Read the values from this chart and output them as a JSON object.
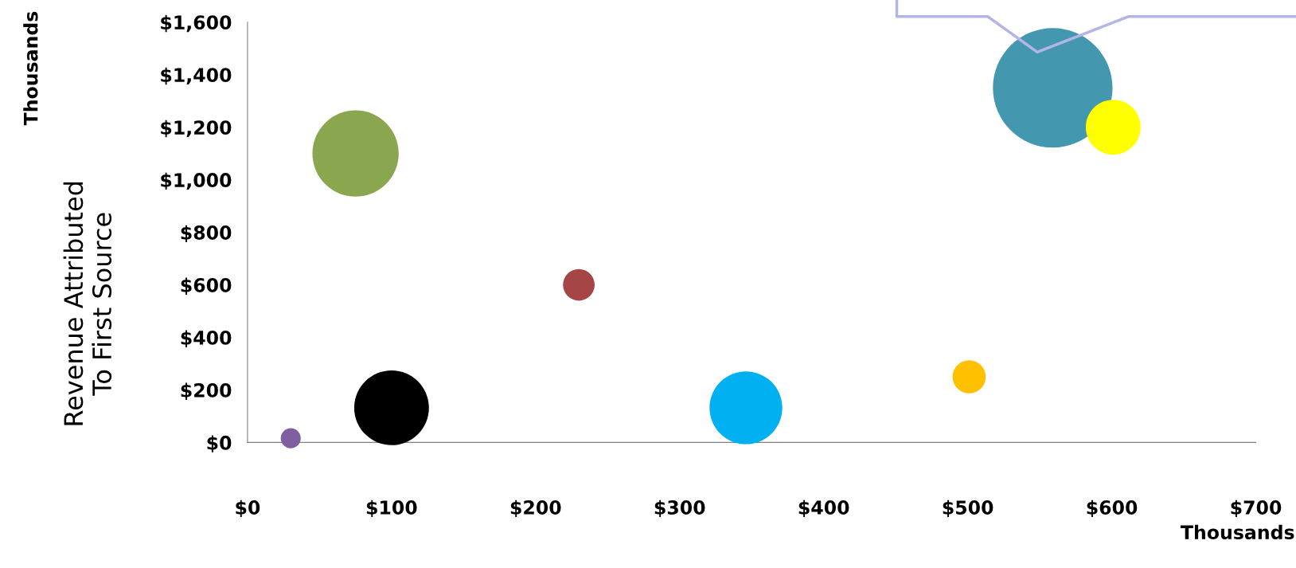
{
  "chart_data": {
    "type": "bubble",
    "ylabel": "Revenue Attributed\nTo First Source",
    "annotations": [
      "Thousands",
      "Thousands"
    ],
    "x": [
      30,
      75,
      100,
      230,
      346,
      501,
      559,
      601
    ],
    "values": [
      16,
      1100,
      132,
      600,
      132,
      250,
      1350,
      1200
    ],
    "sizes": [
      0.028,
      0.52,
      0.39,
      0.07,
      0.37,
      0.077,
      1,
      0.21
    ],
    "colors": [
      "#7f5f9f",
      "#8aa64f",
      "#000000",
      "#a54545",
      "#00b0f0",
      "#ffc000",
      "#4398b0",
      "#ffff00"
    ],
    "xlim": [
      0,
      700
    ],
    "xticks": [
      {
        "value": 0,
        "label": "$0"
      },
      {
        "value": 100,
        "label": "$100"
      },
      {
        "value": 200,
        "label": "$200"
      },
      {
        "value": 300,
        "label": "$300"
      },
      {
        "value": 400,
        "label": "$400"
      },
      {
        "value": 500,
        "label": "$500"
      },
      {
        "value": 600,
        "label": "$600"
      },
      {
        "value": 700,
        "label": "$700"
      }
    ],
    "ylim": [
      0,
      1600
    ],
    "yticks": [
      {
        "value": 0,
        "label": "$0"
      },
      {
        "value": 200,
        "label": "$200"
      },
      {
        "value": 400,
        "label": "$400"
      },
      {
        "value": 600,
        "label": "$600"
      },
      {
        "value": 800,
        "label": "$800"
      },
      {
        "value": 1000,
        "label": "$1,000"
      },
      {
        "value": 1200,
        "label": "$1,200"
      },
      {
        "value": 1400,
        "label": "$1,400"
      },
      {
        "value": 1600,
        "label": "$1,600"
      }
    ],
    "grid": false,
    "legend": false
  }
}
